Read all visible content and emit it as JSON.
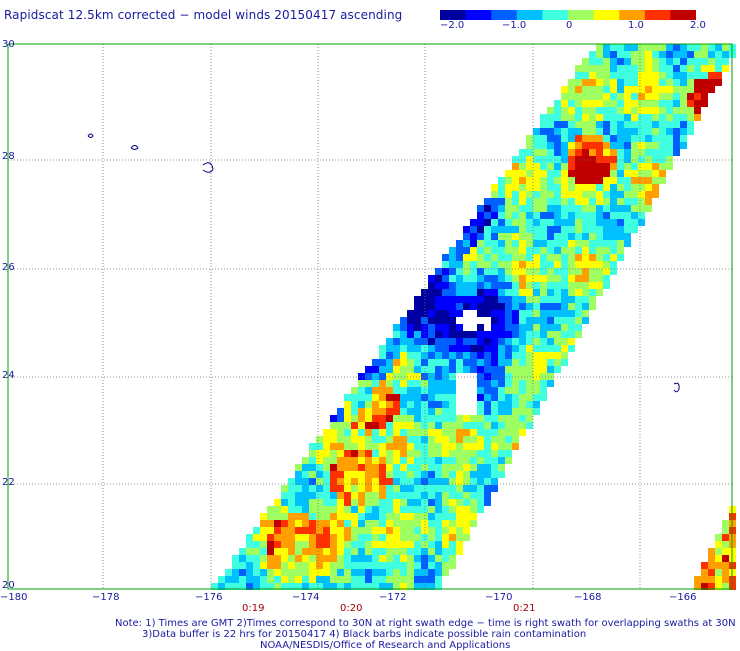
{
  "title": "Rapidscat 12.5km corrected − model winds 20150417 ascending",
  "colorbar": {
    "min": -2.0,
    "max": 2.0,
    "tick_labels": [
      "−2.0",
      "−1.0",
      "0",
      "1.0",
      "2.0"
    ],
    "palette": [
      "#0000a0",
      "#0000ff",
      "#0060ff",
      "#00c0ff",
      "#40ffe0",
      "#a0ff60",
      "#ffff00",
      "#ffa000",
      "#ff3000",
      "#c00000"
    ]
  },
  "map": {
    "lon_range": [
      -180,
      -165
    ],
    "lat_range": [
      20,
      30
    ],
    "lon_ticks": [
      "−180",
      "−178",
      "−176",
      "−174",
      "−172",
      "−170",
      "−168",
      "−166"
    ],
    "lat_ticks": [
      "20",
      "22",
      "24",
      "26",
      "28",
      "30"
    ],
    "gridline_style": "dotted",
    "frame_color": "#00a000"
  },
  "swath_times": [
    "0:19",
    "0:20",
    "0:21"
  ],
  "notes": [
    "Note: 1) Times are GMT 2)Times correspond to 30N at right swath edge − time is right swath for overlapping swaths at 30N",
    "3)Data buffer is 22 hrs for 20150417 4) Black barbs indicate possible rain contamination",
    "NOAA/NESDIS/Office of Research and Applications"
  ]
}
